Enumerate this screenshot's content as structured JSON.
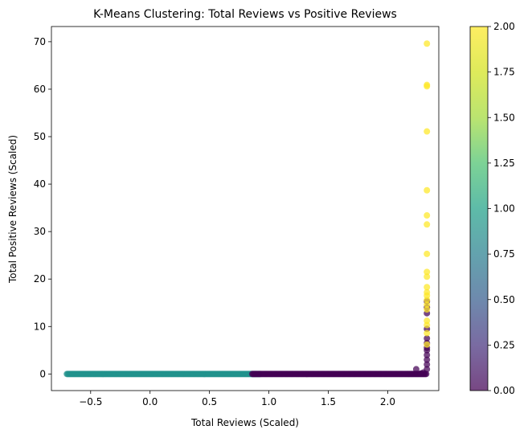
{
  "chart_data": {
    "type": "scatter",
    "title": "K-Means Clustering: Total Reviews vs Positive Reviews",
    "xlabel": "Total Reviews (Scaled)",
    "ylabel": "Total Positive Reviews (Scaled)",
    "xlim": [
      -0.83,
      2.43
    ],
    "ylim": [
      -3.5,
      73.2
    ],
    "xticks": [
      -0.5,
      0.0,
      0.5,
      1.0,
      1.5,
      2.0
    ],
    "xtick_labels": [
      "−0.5",
      "0.0",
      "0.5",
      "1.0",
      "1.5",
      "2.0"
    ],
    "yticks": [
      0,
      10,
      20,
      30,
      40,
      50,
      60,
      70
    ],
    "ytick_labels": [
      "0",
      "10",
      "20",
      "30",
      "40",
      "50",
      "60",
      "70"
    ],
    "grid": false,
    "colorbar": {
      "colormap": "viridis",
      "range": [
        0.0,
        2.0
      ],
      "ticks": [
        0.0,
        0.25,
        0.5,
        0.75,
        1.0,
        1.25,
        1.5,
        1.75,
        2.0
      ],
      "tick_labels": [
        "0.00",
        "0.25",
        "0.50",
        "0.75",
        "1.00",
        "1.25",
        "1.50",
        "1.75",
        "2.00"
      ]
    },
    "colors": {
      "cluster_0": "#440154",
      "cluster_1": "#21918c",
      "cluster_2": "#fde725"
    },
    "series": [
      {
        "cluster": 1,
        "x_range": [
          -0.7,
          0.93
        ],
        "y": 0.0
      },
      {
        "cluster": 0,
        "x_range": [
          0.86,
          2.33
        ],
        "y": 0.0,
        "points": [
          [
            2.24,
            1.0
          ],
          [
            2.3,
            0.3
          ],
          [
            2.28,
            0.1
          ],
          [
            2.33,
            1.0
          ],
          [
            2.33,
            2.0
          ],
          [
            2.33,
            3.0
          ],
          [
            2.33,
            4.0
          ],
          [
            2.33,
            5.0
          ],
          [
            2.33,
            5.5
          ],
          [
            2.33,
            6.5
          ],
          [
            2.33,
            7.5
          ],
          [
            2.33,
            9.5
          ],
          [
            2.33,
            12.8
          ],
          [
            2.33,
            14.0
          ],
          [
            2.33,
            15.3
          ]
        ]
      },
      {
        "cluster": 2,
        "points": [
          [
            2.33,
            69.6
          ],
          [
            2.33,
            60.9
          ],
          [
            2.33,
            60.6
          ],
          [
            2.33,
            51.1
          ],
          [
            2.33,
            38.7
          ],
          [
            2.33,
            33.4
          ],
          [
            2.33,
            31.5
          ],
          [
            2.33,
            25.3
          ],
          [
            2.33,
            21.5
          ],
          [
            2.33,
            20.5
          ],
          [
            2.33,
            18.3
          ],
          [
            2.33,
            17.2
          ],
          [
            2.33,
            16.5
          ],
          [
            2.33,
            15.6
          ],
          [
            2.33,
            14.6
          ],
          [
            2.33,
            13.6
          ],
          [
            2.33,
            11.2
          ],
          [
            2.33,
            10.3
          ],
          [
            2.33,
            8.6
          ],
          [
            2.33,
            6.2
          ]
        ]
      }
    ]
  }
}
